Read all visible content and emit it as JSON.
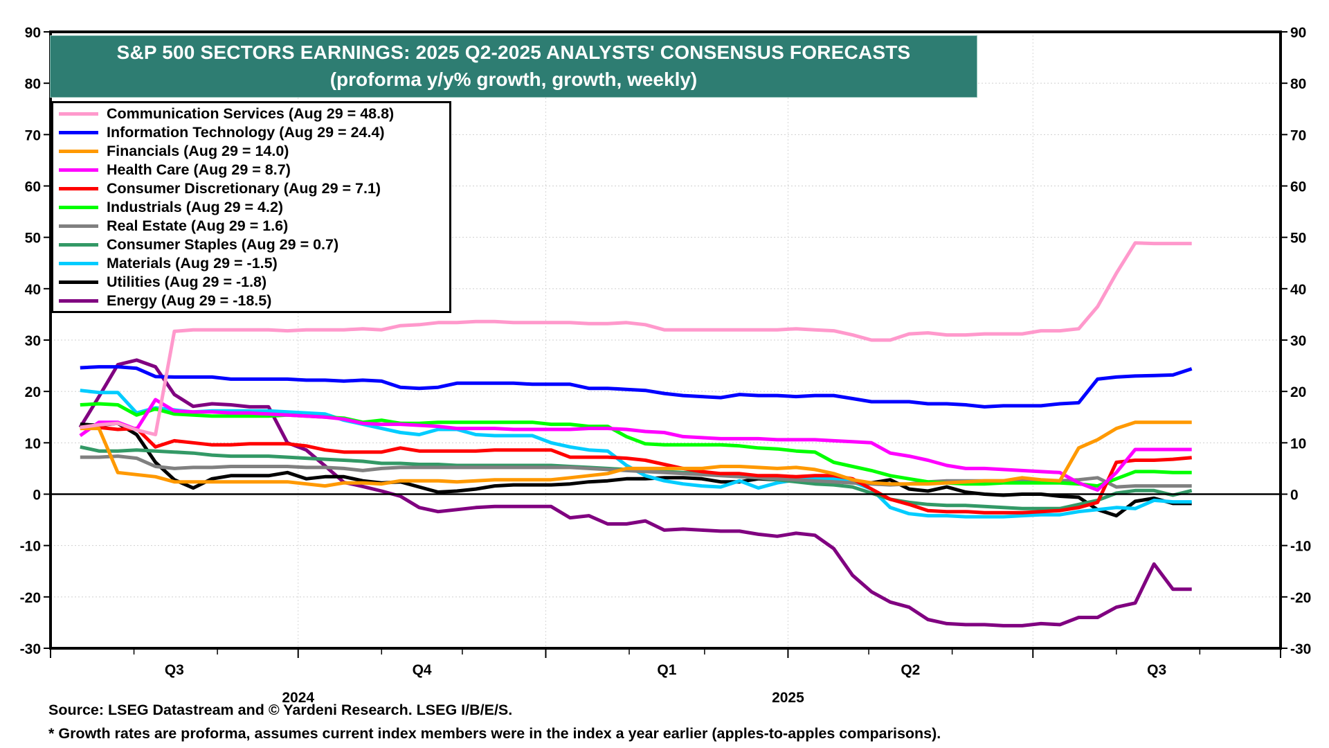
{
  "title": {
    "line1": "S&P 500 SECTORS EARNINGS: 2025 Q2-2025 ANALYSTS' CONSENSUS FORECASTS",
    "line2": "(proforma y/y% growth, growth, weekly)"
  },
  "footnotes": {
    "source": "Source: LSEG Datastream and © Yardeni Research. LSEG I/B/E/S.",
    "note": "* Growth rates are proforma, assumes current index members were in the index a year earlier (apples-to-apples comparisons)."
  },
  "chart_data": {
    "type": "line",
    "title": "S&P 500 SECTORS EARNINGS: 2025 Q2-2025 ANALYSTS' CONSENSUS FORECASTS",
    "subtitle": "(proforma y/y% growth, growth, weekly)",
    "xlabel": "",
    "ylabel": "",
    "ylim": [
      -30,
      90
    ],
    "y_ticks": [
      90,
      80,
      70,
      60,
      50,
      40,
      30,
      20,
      10,
      0,
      -10,
      -20,
      -30
    ],
    "y_axis_sides": [
      "left",
      "right"
    ],
    "grid": true,
    "legend_position": "top-left",
    "x_start": "2024-07-12",
    "x_step_days": 7,
    "x_range": [
      "2024-07-01",
      "2025-10-01"
    ],
    "x_quarter_labels": [
      {
        "label": "Q3",
        "year": "2024"
      },
      {
        "label": "Q4",
        "year": ""
      },
      {
        "label": "Q1",
        "year": ""
      },
      {
        "label": "Q2",
        "year": "2025"
      },
      {
        "label": "Q3",
        "year": ""
      }
    ],
    "series": [
      {
        "name": "Communication Services",
        "legend": "Communication Services (Aug 29 = 48.8)",
        "color": "#ff99cc",
        "values": [
          13.0,
          13.5,
          13.8,
          12.5,
          11.6,
          31.7,
          32.0,
          32.0,
          32.0,
          32.0,
          32.0,
          31.8,
          32.0,
          32.0,
          32.0,
          32.2,
          32.0,
          32.8,
          33.0,
          33.4,
          33.4,
          33.6,
          33.6,
          33.4,
          33.4,
          33.4,
          33.4,
          33.2,
          33.2,
          33.4,
          33.0,
          32.0,
          32.0,
          32.0,
          32.0,
          32.0,
          32.0,
          32.0,
          32.2,
          32.0,
          31.8,
          31.0,
          30.0,
          30.0,
          31.2,
          31.4,
          31.0,
          31.0,
          31.2,
          31.2,
          31.2,
          31.8,
          31.8,
          32.2,
          36.5,
          43.0,
          48.9,
          48.8,
          48.8,
          48.8
        ]
      },
      {
        "name": "Information Technology",
        "legend": "Information Technology (Aug 29 = 24.4)",
        "color": "#0000ff",
        "values": [
          24.6,
          24.8,
          24.8,
          24.5,
          22.9,
          22.8,
          22.8,
          22.8,
          22.4,
          22.4,
          22.4,
          22.4,
          22.2,
          22.2,
          22.0,
          22.2,
          22.0,
          20.8,
          20.6,
          20.8,
          21.6,
          21.6,
          21.6,
          21.6,
          21.4,
          21.4,
          21.4,
          20.6,
          20.6,
          20.4,
          20.2,
          19.6,
          19.2,
          19.0,
          18.8,
          19.4,
          19.2,
          19.2,
          19.0,
          19.2,
          19.2,
          18.6,
          18.0,
          18.0,
          18.0,
          17.6,
          17.6,
          17.4,
          17.0,
          17.2,
          17.2,
          17.2,
          17.6,
          17.8,
          22.4,
          22.8,
          23.0,
          23.1,
          23.2,
          24.4
        ]
      },
      {
        "name": "Financials",
        "legend": "Financials (Aug 29 = 14.0)",
        "color": "#ff9900",
        "values": [
          12.8,
          12.8,
          4.2,
          3.8,
          3.4,
          2.4,
          2.4,
          2.4,
          2.4,
          2.4,
          2.4,
          2.4,
          2.0,
          1.6,
          2.2,
          2.2,
          2.0,
          2.6,
          2.6,
          2.6,
          2.4,
          2.6,
          2.8,
          2.8,
          2.8,
          2.8,
          3.2,
          3.6,
          4.0,
          5.0,
          5.0,
          5.0,
          5.0,
          5.0,
          5.4,
          5.4,
          5.2,
          5.0,
          5.2,
          4.8,
          4.0,
          2.8,
          2.2,
          2.0,
          2.0,
          2.0,
          2.2,
          2.4,
          2.6,
          2.6,
          3.2,
          2.8,
          2.6,
          9.0,
          10.6,
          12.8,
          14.0,
          14.0,
          14.0,
          14.0
        ]
      },
      {
        "name": "Health Care",
        "legend": "Health Care (Aug 29 = 8.7)",
        "color": "#ff00ff",
        "values": [
          11.4,
          14.0,
          14.0,
          12.6,
          18.4,
          16.2,
          16.0,
          16.0,
          15.8,
          15.8,
          15.6,
          15.4,
          15.2,
          15.0,
          14.6,
          13.8,
          13.6,
          13.6,
          13.4,
          13.2,
          12.8,
          12.8,
          12.8,
          12.6,
          12.6,
          12.6,
          12.6,
          12.8,
          12.8,
          12.6,
          12.2,
          12.0,
          11.2,
          11.0,
          10.8,
          10.8,
          10.8,
          10.6,
          10.6,
          10.6,
          10.4,
          10.2,
          10.0,
          8.0,
          7.4,
          6.6,
          5.6,
          5.0,
          5.0,
          4.8,
          4.6,
          4.4,
          4.2,
          2.2,
          0.8,
          4.2,
          8.7,
          8.7,
          8.7,
          8.7
        ]
      },
      {
        "name": "Consumer Discretionary",
        "legend": "Consumer Discretionary (Aug 29 = 7.1)",
        "color": "#ff0000",
        "values": [
          13.0,
          13.0,
          12.6,
          12.8,
          9.2,
          10.4,
          10.0,
          9.6,
          9.6,
          9.8,
          9.8,
          9.8,
          9.4,
          8.6,
          8.2,
          8.2,
          8.2,
          9.0,
          8.4,
          8.4,
          8.4,
          8.4,
          8.6,
          8.6,
          8.6,
          8.6,
          7.2,
          7.2,
          7.2,
          7.0,
          6.6,
          5.8,
          5.0,
          4.4,
          4.0,
          4.0,
          3.6,
          3.6,
          3.4,
          3.6,
          3.6,
          3.0,
          1.0,
          -1.0,
          -2.0,
          -3.2,
          -3.4,
          -3.4,
          -3.6,
          -3.6,
          -3.6,
          -3.4,
          -3.2,
          -2.6,
          -1.6,
          6.2,
          6.6,
          6.6,
          6.8,
          7.1
        ]
      },
      {
        "name": "Industrials",
        "legend": "Industrials (Aug 29 = 4.2)",
        "color": "#00ff00",
        "values": [
          17.4,
          17.6,
          17.4,
          15.4,
          16.6,
          15.6,
          15.4,
          15.2,
          15.2,
          15.2,
          15.2,
          15.4,
          15.2,
          15.0,
          14.8,
          14.0,
          14.4,
          13.8,
          13.8,
          14.0,
          14.0,
          14.0,
          14.0,
          14.0,
          14.0,
          13.6,
          13.6,
          13.2,
          13.2,
          11.2,
          9.8,
          9.6,
          9.6,
          9.6,
          9.6,
          9.4,
          9.0,
          8.8,
          8.4,
          8.2,
          6.2,
          5.4,
          4.6,
          3.6,
          3.0,
          2.4,
          2.2,
          2.0,
          2.0,
          2.2,
          2.2,
          2.2,
          2.2,
          2.0,
          1.6,
          3.0,
          4.4,
          4.4,
          4.2,
          4.2
        ]
      },
      {
        "name": "Real Estate",
        "legend": "Real Estate (Aug 29 = 1.6)",
        "color": "#808080",
        "values": [
          7.2,
          7.2,
          7.4,
          7.0,
          5.4,
          5.0,
          5.2,
          5.2,
          5.4,
          5.4,
          5.4,
          5.4,
          5.2,
          5.2,
          5.0,
          4.6,
          5.0,
          5.2,
          5.2,
          5.2,
          5.2,
          5.2,
          5.2,
          5.2,
          5.2,
          5.2,
          5.2,
          5.0,
          4.8,
          4.6,
          4.4,
          4.2,
          4.0,
          3.8,
          3.6,
          3.4,
          3.2,
          3.0,
          2.8,
          2.6,
          2.4,
          2.2,
          2.0,
          1.8,
          2.0,
          2.4,
          2.6,
          2.6,
          2.6,
          2.6,
          2.6,
          2.6,
          2.6,
          2.8,
          3.2,
          1.4,
          1.6,
          1.6,
          1.6,
          1.6
        ]
      },
      {
        "name": "Consumer Staples",
        "legend": "Consumer Staples (Aug 29 = 0.7)",
        "color": "#339966",
        "values": [
          9.2,
          8.4,
          8.4,
          8.6,
          8.4,
          8.2,
          8.0,
          7.6,
          7.4,
          7.4,
          7.4,
          7.2,
          7.0,
          6.8,
          6.6,
          6.4,
          6.0,
          6.0,
          5.8,
          5.8,
          5.6,
          5.6,
          5.6,
          5.6,
          5.6,
          5.6,
          5.4,
          5.2,
          5.0,
          4.8,
          4.6,
          4.4,
          4.2,
          4.0,
          3.8,
          3.6,
          3.2,
          2.8,
          2.4,
          2.0,
          1.8,
          1.4,
          0.2,
          -1.0,
          -1.6,
          -2.0,
          -2.2,
          -2.2,
          -2.4,
          -2.6,
          -2.8,
          -2.8,
          -2.8,
          -2.0,
          -1.2,
          0.2,
          0.7,
          0.7,
          -0.2,
          0.7
        ]
      },
      {
        "name": "Materials",
        "legend": "Materials (Aug 29 = -1.5)",
        "color": "#00ccff",
        "values": [
          20.2,
          19.8,
          19.8,
          15.8,
          16.8,
          16.4,
          16.0,
          16.2,
          16.2,
          16.2,
          16.2,
          16.0,
          15.8,
          15.6,
          14.4,
          13.6,
          12.8,
          12.0,
          11.6,
          12.6,
          12.6,
          11.6,
          11.4,
          11.4,
          11.4,
          10.0,
          9.2,
          8.6,
          8.4,
          5.6,
          3.6,
          2.6,
          2.0,
          1.6,
          1.4,
          2.6,
          1.2,
          2.2,
          2.8,
          3.2,
          3.0,
          2.4,
          1.0,
          -2.6,
          -3.8,
          -4.2,
          -4.2,
          -4.4,
          -4.4,
          -4.4,
          -4.2,
          -4.0,
          -4.0,
          -3.4,
          -3.0,
          -2.6,
          -2.8,
          -1.2,
          -1.5,
          -1.5
        ]
      },
      {
        "name": "Utilities",
        "legend": "Utilities (Aug 29 = -1.8)",
        "color": "#000000",
        "values": [
          13.6,
          13.4,
          13.8,
          11.6,
          6.2,
          2.8,
          1.2,
          3.0,
          3.6,
          3.6,
          3.6,
          4.2,
          3.0,
          3.4,
          3.4,
          2.6,
          2.2,
          2.4,
          1.4,
          0.4,
          0.6,
          1.0,
          1.6,
          1.8,
          1.8,
          1.8,
          2.0,
          2.4,
          2.6,
          3.0,
          3.0,
          3.2,
          3.2,
          3.0,
          2.4,
          2.4,
          3.0,
          2.8,
          2.6,
          3.0,
          3.0,
          2.6,
          2.2,
          2.8,
          1.0,
          0.6,
          1.4,
          0.4,
          0.0,
          -0.2,
          0.0,
          0.0,
          -0.4,
          -0.6,
          -3.0,
          -4.2,
          -1.4,
          -0.8,
          -1.8,
          -1.8
        ]
      },
      {
        "name": "Energy",
        "legend": "Energy (Aug 29 = -18.5)",
        "color": "#800080",
        "values": [
          13.0,
          19.0,
          25.2,
          26.1,
          24.8,
          19.4,
          17.1,
          17.6,
          17.4,
          17.0,
          17.0,
          10.0,
          8.6,
          5.5,
          2.3,
          1.5,
          0.6,
          -0.4,
          -2.6,
          -3.4,
          -3.0,
          -2.6,
          -2.4,
          -2.4,
          -2.4,
          -2.4,
          -4.6,
          -4.2,
          -5.8,
          -5.8,
          -5.2,
          -7.0,
          -6.8,
          -7.0,
          -7.2,
          -7.2,
          -7.8,
          -8.2,
          -7.6,
          -8.0,
          -10.6,
          -15.8,
          -19.0,
          -21.0,
          -22.0,
          -24.4,
          -25.2,
          -25.4,
          -25.4,
          -25.6,
          -25.6,
          -25.2,
          -25.4,
          -24.0,
          -24.0,
          -22.0,
          -21.2,
          -13.6,
          -18.5,
          -18.5
        ]
      }
    ]
  }
}
